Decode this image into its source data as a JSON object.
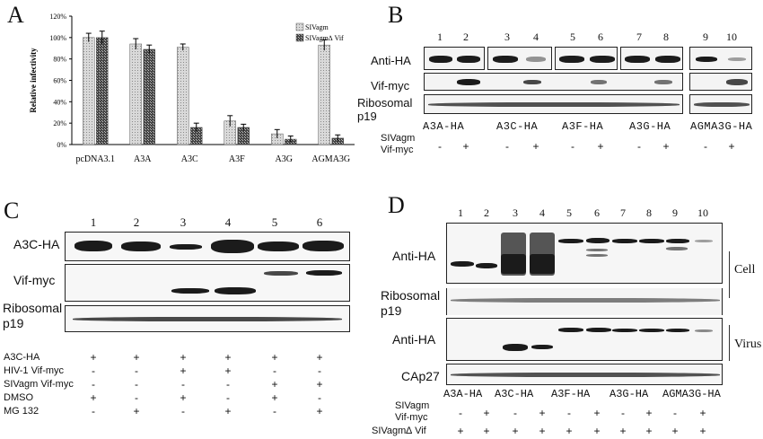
{
  "panels": {
    "A": {
      "letter": "A"
    },
    "B": {
      "letter": "B"
    },
    "C": {
      "letter": "C"
    },
    "D": {
      "letter": "D"
    }
  },
  "chart_data": {
    "type": "bar",
    "categories": [
      "pcDNA3.1",
      "A3A",
      "A3C",
      "A3F",
      "A3G",
      "AGMA3G"
    ],
    "series": [
      {
        "name": "SIVagm",
        "values": [
          100,
          94,
          91,
          22,
          10,
          93
        ],
        "err": [
          4,
          5,
          3,
          5,
          4,
          5
        ]
      },
      {
        "name": "SIVagm∆ Vif",
        "values": [
          100,
          89,
          16,
          16,
          5,
          6
        ],
        "err": [
          6,
          4,
          4,
          3,
          3,
          3
        ]
      }
    ],
    "ylabel": "Relative infectivity",
    "ylim": [
      0,
      120
    ],
    "yticks": [
      "0%",
      "20%",
      "40%",
      "60%",
      "80%",
      "100%",
      "120%"
    ]
  },
  "panelB": {
    "lanes": [
      "1",
      "2",
      "3",
      "4",
      "5",
      "6",
      "7",
      "8",
      "9",
      "10"
    ],
    "rows": [
      "Anti-HA",
      "Vif-myc",
      "Ribosomal",
      "p19"
    ],
    "groups": [
      "A3A-HA",
      "A3C-HA",
      "A3F-HA",
      "A3G-HA",
      "AGMA3G-HA"
    ],
    "cond_labels": [
      "SIVagm",
      "Vif-myc"
    ],
    "signs": [
      "-",
      "+",
      "-",
      "+",
      "-",
      "+",
      "-",
      "+",
      "-",
      "+"
    ]
  },
  "panelC": {
    "lanes": [
      "1",
      "2",
      "3",
      "4",
      "5",
      "6"
    ],
    "rows": [
      "A3C-HA",
      "Vif-myc",
      "Ribosomal",
      "p19"
    ],
    "conditions": [
      {
        "label": "A3C-HA",
        "signs": [
          "+",
          "+",
          "+",
          "+",
          "+",
          "+"
        ]
      },
      {
        "label": "HIV-1 Vif-myc",
        "signs": [
          "-",
          "-",
          "+",
          "+",
          "-",
          "-"
        ]
      },
      {
        "label": "SIVagm Vif-myc",
        "signs": [
          "-",
          "-",
          "-",
          "-",
          "+",
          "+"
        ]
      },
      {
        "label": "DMSO",
        "signs": [
          "+",
          "-",
          "+",
          "-",
          "+",
          "-"
        ]
      },
      {
        "label": "MG 132",
        "signs": [
          "-",
          "+",
          "-",
          "+",
          "-",
          "+"
        ]
      }
    ]
  },
  "panelD": {
    "lanes": [
      "1",
      "2",
      "3",
      "4",
      "5",
      "6",
      "7",
      "8",
      "9",
      "10"
    ],
    "rows": [
      "Anti-HA",
      "Ribosomal",
      "p19",
      "Anti-HA",
      "CAp27"
    ],
    "side": [
      "Cell",
      "Virus"
    ],
    "groups": [
      "A3A-HA",
      "A3C-HA",
      "A3F-HA",
      "A3G-HA",
      "AGMA3G-HA"
    ],
    "cond_labels": [
      "SIVagm",
      "Vif-myc",
      "SIVagm∆ Vif"
    ],
    "signs": [
      "-",
      "+",
      "-",
      "+",
      "-",
      "+",
      "-",
      "+",
      "-",
      "+"
    ],
    "plus": [
      "+",
      "+",
      "+",
      "+",
      "+",
      "+",
      "+",
      "+",
      "+",
      "+"
    ]
  }
}
